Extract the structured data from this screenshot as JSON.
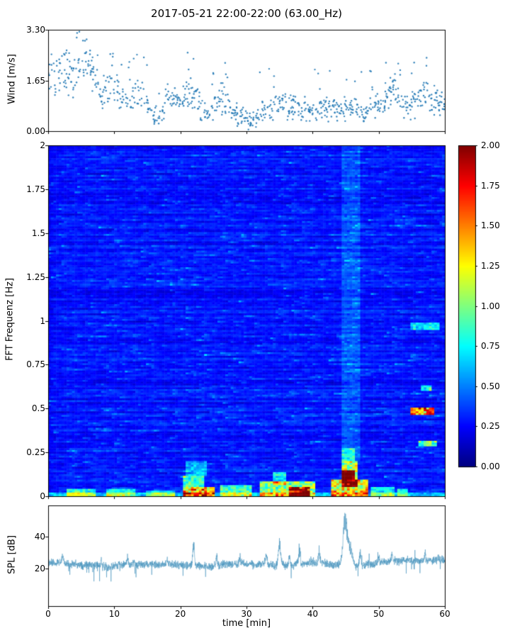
{
  "title": "2017-05-21 22:00-22:00 (63.00_Hz)",
  "xaxis": {
    "label": "time [min]",
    "lim": [
      0,
      60
    ],
    "ticks": [
      0,
      10,
      20,
      30,
      40,
      50,
      60
    ],
    "tick_labels": [
      "0",
      "10",
      "20",
      "30",
      "40",
      "50",
      "60"
    ]
  },
  "chart_data": [
    {
      "type": "scatter",
      "name": "wind",
      "ylabel": "Wind [m/s]",
      "ylim": [
        0,
        3.3
      ],
      "yticks": [
        0,
        1.65,
        3.3
      ],
      "ytick_labels": [
        "0.00",
        "1.65",
        "3.30"
      ],
      "color": "#1f77b4",
      "seed": 20170521,
      "envelope_per_min": [
        1.5,
        1.7,
        2.0,
        1.9,
        1.7,
        2.2,
        2.4,
        1.8,
        1.3,
        1.2,
        1.6,
        1.2,
        1.1,
        1.0,
        1.4,
        0.8,
        0.45,
        0.6,
        1.2,
        0.9,
        1.0,
        1.3,
        1.2,
        0.8,
        0.6,
        0.7,
        1.1,
        0.9,
        0.65,
        0.55,
        0.35,
        0.3,
        0.6,
        0.75,
        0.75,
        0.85,
        0.75,
        0.75,
        0.65,
        0.7,
        0.65,
        0.7,
        0.8,
        0.7,
        0.65,
        0.75,
        0.8,
        0.6,
        0.55,
        0.7,
        0.9,
        1.1,
        1.5,
        1.0,
        0.8,
        0.85,
        1.1,
        1.2,
        1.0,
        0.9,
        0.9
      ]
    },
    {
      "type": "heatmap",
      "name": "spectrogram",
      "ylabel": "FFT Frequenz [Hz]",
      "ylim": [
        0,
        2
      ],
      "yticks": [
        0,
        0.25,
        0.5,
        0.75,
        1,
        1.25,
        1.5,
        1.75,
        2
      ],
      "ytick_labels": [
        "0",
        "0.25",
        "0.5",
        "0.75",
        "1",
        "1.25",
        "1.5",
        "1.75",
        "2"
      ],
      "colormap": "jet",
      "clim": [
        0,
        2
      ],
      "colorbar_ticks": [
        0,
        0.25,
        0.5,
        0.75,
        1,
        1.25,
        1.5,
        1.75,
        2
      ],
      "colorbar_tick_labels": [
        "0.00",
        "0.25",
        "0.50",
        "0.75",
        "1.00",
        "1.25",
        "1.50",
        "1.75",
        "2.00"
      ],
      "grid": {
        "cols": 150,
        "rows": 190
      },
      "seed": 63,
      "noise": {
        "base": 0.1,
        "range": 0.22,
        "row_bias": 0.12,
        "speckle_p": 0.1,
        "speckle_a": 0.35,
        "rare_p": 0.015,
        "rare_a": 0.6,
        "persist": 0.55
      },
      "hotspots": [
        {
          "t": [
            0,
            60
          ],
          "f": [
            0,
            0.025
          ],
          "a": 0.45
        },
        {
          "t": [
            3,
            7
          ],
          "f": [
            0,
            0.04
          ],
          "a": 0.7
        },
        {
          "t": [
            9,
            13
          ],
          "f": [
            0,
            0.04
          ],
          "a": 0.6
        },
        {
          "t": [
            15,
            19
          ],
          "f": [
            0,
            0.035
          ],
          "a": 0.5
        },
        {
          "t": [
            20.3,
            25
          ],
          "f": [
            0,
            0.055
          ],
          "a": 1.5
        },
        {
          "t": [
            20.5,
            23.5
          ],
          "f": [
            0.055,
            0.12
          ],
          "a": 0.8
        },
        {
          "t": [
            21,
            24
          ],
          "f": [
            0.12,
            0.2
          ],
          "a": 0.4
        },
        {
          "t": [
            26,
            31
          ],
          "f": [
            0,
            0.06
          ],
          "a": 0.8
        },
        {
          "t": [
            32,
            40.5
          ],
          "f": [
            0,
            0.08
          ],
          "a": 1.0
        },
        {
          "t": [
            36.5,
            39.5
          ],
          "f": [
            0,
            0.05
          ],
          "a": 1.4
        },
        {
          "t": [
            34,
            36
          ],
          "f": [
            0.06,
            0.14
          ],
          "a": 0.6
        },
        {
          "t": [
            43,
            48.2
          ],
          "f": [
            0,
            0.1
          ],
          "a": 1.3
        },
        {
          "t": [
            44.3,
            46.6
          ],
          "f": [
            0.05,
            0.2
          ],
          "a": 1.1
        },
        {
          "t": [
            44.5,
            46.2
          ],
          "f": [
            0.1,
            0.145
          ],
          "a": 1.5
        },
        {
          "t": [
            44.5,
            46.5
          ],
          "f": [
            0.2,
            0.27
          ],
          "a": 0.5
        },
        {
          "t": [
            44.5,
            47
          ],
          "f": [
            0.2,
            2
          ],
          "a": 0.18
        },
        {
          "t": [
            49,
            52.5
          ],
          "f": [
            0,
            0.05
          ],
          "a": 0.6
        },
        {
          "t": [
            53,
            54.5
          ],
          "f": [
            0,
            0.04
          ],
          "a": 0.6
        },
        {
          "t": [
            55,
            58.2
          ],
          "f": [
            0.465,
            0.505
          ],
          "a": 1.6
        },
        {
          "t": [
            56,
            58.6
          ],
          "f": [
            0.285,
            0.315
          ],
          "a": 0.9
        },
        {
          "t": [
            56.5,
            58
          ],
          "f": [
            0.6,
            0.63
          ],
          "a": 0.7
        },
        {
          "t": [
            55,
            59
          ],
          "f": [
            0.945,
            0.985
          ],
          "a": 0.55
        }
      ]
    },
    {
      "type": "line",
      "name": "spl",
      "ylabel": "SPL [dB]",
      "ylim": [
        -4,
        60
      ],
      "yticks": [
        20,
        40
      ],
      "ytick_labels": [
        "20",
        "40"
      ],
      "color": "#4c96be",
      "baseline": 23.5,
      "noise_amp": 3,
      "seed": 2200,
      "peaks": [
        {
          "t": 2.2,
          "a": 5,
          "w": 0.1
        },
        {
          "t": 8,
          "a": 4,
          "w": 0.08
        },
        {
          "t": 12,
          "a": 4,
          "w": 0.1
        },
        {
          "t": 18,
          "a": 4,
          "w": 0.08
        },
        {
          "t": 22,
          "a": 13,
          "w": 0.12
        },
        {
          "t": 25.5,
          "a": 5,
          "w": 0.1
        },
        {
          "t": 29,
          "a": 4,
          "w": 0.1
        },
        {
          "t": 33,
          "a": 6,
          "w": 0.15
        },
        {
          "t": 35,
          "a": 13,
          "w": 0.18
        },
        {
          "t": 36.5,
          "a": 6,
          "w": 0.12
        },
        {
          "t": 38,
          "a": 9,
          "w": 0.12
        },
        {
          "t": 41,
          "a": 7,
          "w": 0.1
        },
        {
          "t": 44.9,
          "a": 26,
          "w": 0.3
        },
        {
          "t": 45.6,
          "a": 10,
          "w": 0.4
        },
        {
          "t": 47.2,
          "a": 9,
          "w": 0.12
        },
        {
          "t": 50,
          "a": 4,
          "w": 0.1
        },
        {
          "t": 52,
          "a": 4,
          "w": 0.1
        },
        {
          "t": 57,
          "a": 5,
          "w": 0.1
        }
      ]
    }
  ]
}
